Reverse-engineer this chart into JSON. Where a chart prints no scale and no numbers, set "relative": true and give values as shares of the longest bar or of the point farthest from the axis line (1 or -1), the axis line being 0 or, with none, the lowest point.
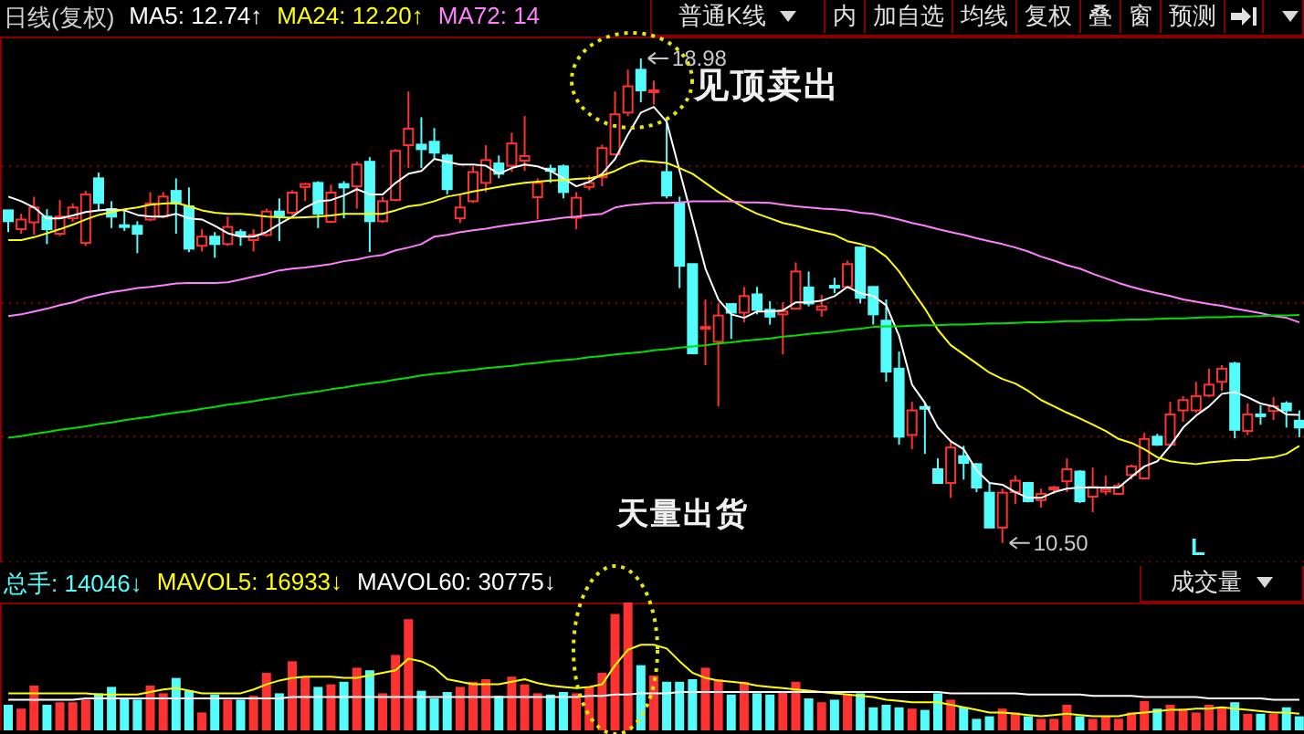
{
  "chart_data": [
    {
      "type": "candlestick",
      "title": "日线(复权)",
      "legend": "top left",
      "tick_labels": false,
      "grid": "y",
      "yticks": [
        {
          "value": 17.09,
          "label": null
        },
        {
          "value": 14.7,
          "label": null
        },
        {
          "value": 12.36,
          "label": null
        }
      ],
      "categories": [
        null,
        null,
        null,
        null,
        null,
        null,
        null,
        null,
        null,
        null,
        null,
        null,
        null,
        null,
        null,
        null,
        null,
        null,
        null,
        null,
        null,
        null,
        null,
        null,
        null,
        null,
        null,
        null,
        null,
        null,
        null,
        null,
        null,
        null,
        null,
        null,
        null,
        null,
        null,
        null,
        null,
        null,
        null,
        null,
        null,
        null,
        null,
        null,
        null,
        null,
        null,
        null,
        null,
        null,
        null,
        null,
        null,
        null,
        null,
        null,
        null,
        null,
        null,
        null,
        null,
        null,
        null,
        null,
        null,
        null,
        null,
        null,
        null,
        null,
        null,
        null,
        null,
        null,
        null,
        null,
        null,
        null,
        null,
        null,
        null,
        null,
        null,
        null,
        null,
        null,
        null,
        null,
        null,
        null,
        null,
        null,
        null,
        null,
        null,
        null,
        null
      ],
      "ohlc": [
        [
          16.32,
          16.32,
          15.94,
          16.13
        ],
        [
          15.99,
          16.26,
          15.91,
          16.16
        ],
        [
          16.11,
          16.56,
          15.89,
          16.37
        ],
        [
          16.21,
          16.34,
          15.73,
          15.99
        ],
        [
          15.91,
          16.5,
          15.87,
          16.21
        ],
        [
          16.18,
          16.44,
          16.12,
          16.37
        ],
        [
          15.75,
          16.66,
          15.7,
          16.6
        ],
        [
          16.88,
          16.98,
          16.32,
          16.45
        ],
        [
          16.34,
          16.48,
          16.01,
          16.21
        ],
        [
          16.06,
          16.34,
          15.96,
          16.03
        ],
        [
          16.05,
          16.13,
          15.57,
          15.91
        ],
        [
          16.16,
          16.64,
          16.13,
          16.44
        ],
        [
          16.21,
          16.64,
          16.18,
          16.56
        ],
        [
          16.66,
          16.88,
          15.91,
          16.44
        ],
        [
          16.39,
          16.72,
          15.59,
          15.65
        ],
        [
          15.7,
          15.99,
          15.6,
          15.86
        ],
        [
          15.86,
          15.94,
          15.49,
          15.73
        ],
        [
          15.73,
          16.21,
          15.7,
          16.03
        ],
        [
          15.94,
          15.99,
          15.7,
          15.88
        ],
        [
          15.8,
          15.99,
          15.6,
          15.89
        ],
        [
          15.89,
          16.35,
          15.86,
          16.3
        ],
        [
          16.3,
          16.53,
          15.78,
          16.23
        ],
        [
          16.28,
          16.67,
          16.24,
          16.63
        ],
        [
          16.73,
          16.8,
          16.48,
          16.78
        ],
        [
          16.8,
          16.83,
          16.01,
          16.26
        ],
        [
          16.12,
          16.77,
          16.1,
          16.63
        ],
        [
          16.78,
          16.83,
          16.18,
          16.72
        ],
        [
          16.74,
          17.17,
          16.35,
          17.12
        ],
        [
          17.17,
          17.25,
          15.59,
          16.13
        ],
        [
          16.13,
          16.56,
          16.1,
          16.48
        ],
        [
          16.5,
          17.39,
          16.48,
          17.36
        ],
        [
          17.46,
          18.4,
          17.06,
          17.75
        ],
        [
          17.47,
          17.95,
          17.06,
          17.39
        ],
        [
          17.52,
          17.76,
          17.23,
          17.33
        ],
        [
          17.28,
          17.31,
          16.6,
          16.69
        ],
        [
          16.18,
          16.6,
          16.1,
          16.37
        ],
        [
          16.48,
          17.09,
          16.45,
          16.99
        ],
        [
          16.8,
          17.46,
          16.64,
          17.2
        ],
        [
          17.14,
          17.28,
          16.88,
          16.96
        ],
        [
          17.1,
          17.68,
          16.99,
          17.49
        ],
        [
          17.19,
          17.97,
          17.01,
          17.27
        ],
        [
          16.55,
          16.88,
          16.16,
          16.8
        ],
        [
          17.05,
          17.12,
          16.8,
          17.01
        ],
        [
          17.09,
          17.12,
          16.53,
          16.64
        ],
        [
          16.19,
          16.64,
          15.99,
          16.54
        ],
        [
          16.73,
          16.93,
          16.67,
          16.8
        ],
        [
          16.9,
          17.47,
          16.74,
          17.41
        ],
        [
          17.3,
          18.4,
          17.28,
          18.0
        ],
        [
          18.03,
          18.78,
          17.97,
          18.49
        ],
        [
          18.78,
          18.98,
          18.21,
          18.42
        ],
        [
          18.4,
          18.59,
          18.17,
          18.42
        ],
        [
          16.99,
          17.87,
          16.53,
          16.58
        ],
        [
          16.45,
          16.56,
          14.96,
          15.35
        ],
        [
          15.38,
          15.38,
          13.8,
          13.82
        ],
        [
          14.25,
          14.76,
          13.61,
          14.28
        ],
        [
          14.02,
          14.69,
          12.89,
          14.48
        ],
        [
          14.68,
          14.68,
          14.07,
          14.53
        ],
        [
          14.53,
          14.98,
          14.36,
          14.82
        ],
        [
          14.85,
          14.98,
          14.5,
          14.58
        ],
        [
          14.58,
          14.73,
          14.32,
          14.46
        ],
        [
          14.5,
          14.71,
          13.8,
          14.55
        ],
        [
          14.6,
          15.41,
          14.58,
          15.25
        ],
        [
          14.97,
          15.25,
          14.64,
          14.69
        ],
        [
          14.58,
          14.84,
          14.46,
          14.64
        ],
        [
          15.0,
          15.14,
          14.87,
          14.98
        ],
        [
          14.98,
          15.44,
          14.96,
          15.38
        ],
        [
          15.67,
          15.67,
          14.69,
          14.79
        ],
        [
          14.98,
          14.98,
          14.32,
          14.5
        ],
        [
          14.39,
          14.76,
          13.32,
          13.5
        ],
        [
          13.55,
          13.85,
          12.22,
          12.36
        ],
        [
          12.39,
          12.97,
          12.14,
          12.82
        ],
        [
          12.88,
          12.94,
          12.06,
          12.86
        ],
        [
          11.79,
          11.98,
          11.55,
          11.55
        ],
        [
          11.55,
          12.3,
          11.29,
          12.17
        ],
        [
          12.02,
          12.2,
          11.61,
          11.9
        ],
        [
          11.88,
          11.9,
          11.39,
          11.47
        ],
        [
          11.38,
          11.55,
          10.77,
          10.77
        ],
        [
          10.77,
          11.45,
          10.5,
          11.38
        ],
        [
          11.39,
          11.68,
          11.18,
          11.59
        ],
        [
          11.55,
          11.57,
          11.21,
          11.23
        ],
        [
          11.25,
          11.45,
          11.12,
          11.36
        ],
        [
          11.44,
          11.5,
          11.36,
          11.47
        ],
        [
          11.58,
          11.98,
          11.39,
          11.79
        ],
        [
          11.75,
          11.77,
          11.2,
          11.23
        ],
        [
          11.31,
          11.82,
          11.04,
          11.48
        ],
        [
          11.4,
          11.68,
          11.34,
          11.44
        ],
        [
          11.36,
          11.55,
          11.34,
          11.5
        ],
        [
          11.69,
          11.87,
          11.61,
          11.84
        ],
        [
          11.63,
          12.43,
          11.61,
          12.32
        ],
        [
          12.36,
          12.41,
          12.2,
          12.22
        ],
        [
          12.22,
          12.97,
          12.2,
          12.75
        ],
        [
          12.82,
          13.07,
          12.62,
          13.0
        ],
        [
          12.82,
          13.32,
          12.78,
          13.07
        ],
        [
          13.08,
          13.55,
          13.05,
          13.27
        ],
        [
          13.32,
          13.61,
          13.16,
          13.55
        ],
        [
          13.64,
          13.67,
          12.33,
          12.48
        ],
        [
          12.46,
          12.94,
          12.39,
          12.75
        ],
        [
          12.75,
          12.91,
          12.57,
          12.73
        ],
        [
          12.81,
          13.05,
          12.65,
          12.89
        ],
        [
          12.94,
          12.98,
          12.52,
          12.82
        ],
        [
          12.64,
          12.82,
          12.35,
          12.52
        ]
      ],
      "colors": [
        "#54fcfc",
        "#ff3232",
        "#ff3232",
        "#54fcfc",
        "#ff3232",
        "#ff3232",
        "#ff3232",
        "#54fcfc",
        "#54fcfc",
        "#54fcfc",
        "#54fcfc",
        "#ff3232",
        "#ff3232",
        "#54fcfc",
        "#54fcfc",
        "#ff3232",
        "#54fcfc",
        "#ff3232",
        "#54fcfc",
        "#ff3232",
        "#ff3232",
        "#54fcfc",
        "#ff3232",
        "#ff3232",
        "#54fcfc",
        "#ff3232",
        "#54fcfc",
        "#ff3232",
        "#54fcfc",
        "#ff3232",
        "#ff3232",
        "#ff3232",
        "#54fcfc",
        "#54fcfc",
        "#54fcfc",
        "#ff3232",
        "#ff3232",
        "#ff3232",
        "#54fcfc",
        "#ff3232",
        "#ff3232",
        "#ff3232",
        "#54fcfc",
        "#54fcfc",
        "#ff3232",
        "#ff3232",
        "#ff3232",
        "#ff3232",
        "#ff3232",
        "#54fcfc",
        "#ff3232",
        "#54fcfc",
        "#54fcfc",
        "#54fcfc",
        "#ff3232",
        "#ff3232",
        "#54fcfc",
        "#ff3232",
        "#54fcfc",
        "#54fcfc",
        "#ff3232",
        "#ff3232",
        "#54fcfc",
        "#ff3232",
        "#54fcfc",
        "#ff3232",
        "#54fcfc",
        "#54fcfc",
        "#54fcfc",
        "#54fcfc",
        "#ff3232",
        "#54fcfc",
        "#54fcfc",
        "#ff3232",
        "#54fcfc",
        "#54fcfc",
        "#54fcfc",
        "#ff3232",
        "#ff3232",
        "#54fcfc",
        "#ff3232",
        "#ff3232",
        "#ff3232",
        "#54fcfc",
        "#ff3232",
        "#ff3232",
        "#ff3232",
        "#ff3232",
        "#ff3232",
        "#54fcfc",
        "#ff3232",
        "#ff3232",
        "#ff3232",
        "#ff3232",
        "#ff3232",
        "#54fcfc",
        "#ff3232",
        "#54fcfc",
        "#ff3232",
        "#54fcfc",
        "#54fcfc"
      ],
      "series": [
        {
          "type": "line",
          "name": "MA5: 12.74↑",
          "color": "#ffffff",
          "values": [
            16.56,
            16.48,
            16.37,
            16.18,
            16.18,
            16.23,
            16.29,
            16.32,
            16.34,
            16.32,
            16.24,
            16.21,
            16.21,
            16.26,
            16.18,
            16.16,
            16.05,
            15.92,
            15.86,
            15.86,
            15.94,
            16.08,
            16.21,
            16.37,
            16.48,
            16.5,
            16.58,
            16.69,
            16.6,
            16.6,
            16.8,
            16.96,
            17.01,
            17.22,
            17.17,
            17.12,
            17.12,
            17.1,
            16.96,
            17.06,
            17.12,
            17.09,
            17.01,
            16.88,
            16.74,
            16.82,
            16.96,
            17.22,
            17.65,
            18.03,
            18.13,
            17.87,
            17.01,
            16.16,
            15.3,
            14.76,
            14.5,
            14.44,
            14.55,
            14.55,
            14.57,
            14.71,
            14.71,
            14.74,
            14.82,
            14.98,
            14.87,
            14.82,
            14.66,
            14.12,
            13.27,
            12.95,
            12.52,
            12.28,
            12.14,
            11.77,
            11.55,
            11.52,
            11.39,
            11.29,
            11.29,
            11.39,
            11.45,
            11.47,
            11.47,
            11.47,
            11.47,
            11.66,
            11.84,
            11.93,
            12.2,
            12.52,
            12.73,
            12.89,
            13.11,
            13.14,
            13.05,
            12.94,
            12.89,
            12.75,
            12.74
          ]
        },
        {
          "type": "line",
          "name": "MA24: 12.20↑",
          "color": "#ffff00",
          "values": [
            15.8,
            15.8,
            15.85,
            15.92,
            15.99,
            16.07,
            16.16,
            16.24,
            16.29,
            16.34,
            16.37,
            16.42,
            16.44,
            16.45,
            16.39,
            16.32,
            16.28,
            16.26,
            16.26,
            16.24,
            16.21,
            16.2,
            16.19,
            16.2,
            16.21,
            16.23,
            16.26,
            16.26,
            16.26,
            16.26,
            16.32,
            16.39,
            16.42,
            16.48,
            16.56,
            16.6,
            16.65,
            16.69,
            16.73,
            16.77,
            16.8,
            16.82,
            16.84,
            16.85,
            16.87,
            16.88,
            16.93,
            17.01,
            17.12,
            17.19,
            17.17,
            17.15,
            17.06,
            16.96,
            16.8,
            16.64,
            16.5,
            16.37,
            16.26,
            16.18,
            16.1,
            16.05,
            15.99,
            15.94,
            15.89,
            15.78,
            15.73,
            15.67,
            15.51,
            15.25,
            14.92,
            14.6,
            14.23,
            13.96,
            13.8,
            13.64,
            13.48,
            13.37,
            13.29,
            13.16,
            13.0,
            12.89,
            12.78,
            12.68,
            12.57,
            12.46,
            12.32,
            12.25,
            12.14,
            12.0,
            11.93,
            11.9,
            11.88,
            11.91,
            11.93,
            11.95,
            11.95,
            11.98,
            12.0,
            12.06,
            12.2
          ]
        },
        {
          "type": "line",
          "name": "MA72: 14",
          "color": "#ff80ff",
          "values": [
            14.47,
            14.5,
            14.55,
            14.6,
            14.66,
            14.71,
            14.79,
            14.84,
            14.89,
            14.92,
            14.96,
            14.98,
            15.01,
            15.04,
            15.05,
            15.05,
            15.05,
            15.06,
            15.11,
            15.16,
            15.21,
            15.27,
            15.3,
            15.32,
            15.35,
            15.38,
            15.43,
            15.46,
            15.51,
            15.54,
            15.62,
            15.67,
            15.73,
            15.86,
            15.89,
            15.94,
            15.97,
            16.0,
            16.04,
            16.07,
            16.1,
            16.13,
            16.16,
            16.19,
            16.21,
            16.24,
            16.26,
            16.37,
            16.41,
            16.43,
            16.45,
            16.45,
            16.46,
            16.48,
            16.48,
            16.48,
            16.48,
            16.46,
            16.46,
            16.45,
            16.42,
            16.39,
            16.37,
            16.35,
            16.34,
            16.32,
            16.28,
            16.26,
            16.21,
            16.16,
            16.1,
            16.05,
            15.99,
            15.94,
            15.89,
            15.83,
            15.78,
            15.73,
            15.67,
            15.6,
            15.51,
            15.44,
            15.36,
            15.3,
            15.21,
            15.13,
            15.05,
            14.98,
            14.92,
            14.87,
            14.82,
            14.76,
            14.72,
            14.68,
            14.65,
            14.6,
            14.56,
            14.52,
            14.47,
            14.44,
            14.36
          ]
        },
        {
          "type": "line",
          "color": "#00e000",
          "values": [
            12.34,
            12.37,
            12.41,
            12.44,
            12.48,
            12.51,
            12.54,
            12.58,
            12.61,
            12.65,
            12.68,
            12.71,
            12.75,
            12.78,
            12.81,
            12.85,
            12.88,
            12.92,
            12.95,
            12.98,
            13.02,
            13.05,
            13.09,
            13.12,
            13.15,
            13.19,
            13.22,
            13.26,
            13.29,
            13.32,
            13.36,
            13.39,
            13.43,
            13.46,
            13.48,
            13.51,
            13.53,
            13.56,
            13.58,
            13.6,
            13.63,
            13.65,
            13.68,
            13.7,
            13.72,
            13.75,
            13.77,
            13.8,
            13.82,
            13.84,
            13.87,
            13.89,
            13.92,
            13.94,
            13.96,
            13.99,
            14.01,
            14.04,
            14.06,
            14.08,
            14.11,
            14.13,
            14.16,
            14.18,
            14.2,
            14.23,
            14.25,
            14.28,
            14.29,
            14.29,
            14.3,
            14.31,
            14.31,
            14.32,
            14.32,
            14.33,
            14.34,
            14.34,
            14.35,
            14.36,
            14.36,
            14.37,
            14.38,
            14.38,
            14.39,
            14.39,
            14.4,
            14.41,
            14.41,
            14.42,
            14.43,
            14.43,
            14.44,
            14.45,
            14.45,
            14.46,
            14.46,
            14.47,
            14.48,
            14.48,
            14.49
          ]
        }
      ],
      "annotations": [
        "18.98",
        "10.50",
        "见顶卖出",
        "天量出货",
        "L",
        "普通K线",
        "内",
        "加自选",
        "均线",
        "复权",
        "叠",
        "窗",
        "预测"
      ]
    },
    {
      "type": "bar",
      "relative": true,
      "legend": "top left",
      "tick_labels": false,
      "categories": [
        null,
        null,
        null,
        null,
        null,
        null,
        null,
        null,
        null,
        null,
        null,
        null,
        null,
        null,
        null,
        null,
        null,
        null,
        null,
        null,
        null,
        null,
        null,
        null,
        null,
        null,
        null,
        null,
        null,
        null,
        null,
        null,
        null,
        null,
        null,
        null,
        null,
        null,
        null,
        null,
        null,
        null,
        null,
        null,
        null,
        null,
        null,
        null,
        null,
        null,
        null,
        null,
        null,
        null,
        null,
        null,
        null,
        null,
        null,
        null,
        null,
        null,
        null,
        null,
        null,
        null,
        null,
        null,
        null,
        null,
        null,
        null,
        null,
        null,
        null,
        null,
        null,
        null,
        null,
        null,
        null,
        null,
        null,
        null,
        null,
        null,
        null,
        null,
        null,
        null,
        null,
        null,
        null,
        null,
        null,
        null,
        null,
        null,
        null,
        null,
        null
      ],
      "series": [
        {
          "name": "总手: 14046↓",
          "color": "#54fcfc",
          "colors": [
            "#54fcfc",
            "#ff3232",
            "#ff3232",
            "#54fcfc",
            "#ff3232",
            "#ff3232",
            "#ff3232",
            "#54fcfc",
            "#54fcfc",
            "#54fcfc",
            "#54fcfc",
            "#ff3232",
            "#ff3232",
            "#54fcfc",
            "#54fcfc",
            "#ff3232",
            "#54fcfc",
            "#ff3232",
            "#54fcfc",
            "#ff3232",
            "#ff3232",
            "#54fcfc",
            "#ff3232",
            "#ff3232",
            "#54fcfc",
            "#ff3232",
            "#54fcfc",
            "#ff3232",
            "#54fcfc",
            "#ff3232",
            "#ff3232",
            "#ff3232",
            "#54fcfc",
            "#54fcfc",
            "#54fcfc",
            "#ff3232",
            "#ff3232",
            "#ff3232",
            "#54fcfc",
            "#ff3232",
            "#ff3232",
            "#ff3232",
            "#54fcfc",
            "#54fcfc",
            "#ff3232",
            "#ff3232",
            "#ff3232",
            "#ff3232",
            "#ff3232",
            "#54fcfc",
            "#ff3232",
            "#54fcfc",
            "#54fcfc",
            "#54fcfc",
            "#ff3232",
            "#ff3232",
            "#54fcfc",
            "#ff3232",
            "#54fcfc",
            "#54fcfc",
            "#ff3232",
            "#ff3232",
            "#54fcfc",
            "#ff3232",
            "#54fcfc",
            "#ff3232",
            "#54fcfc",
            "#54fcfc",
            "#54fcfc",
            "#54fcfc",
            "#ff3232",
            "#54fcfc",
            "#54fcfc",
            "#ff3232",
            "#54fcfc",
            "#54fcfc",
            "#54fcfc",
            "#ff3232",
            "#ff3232",
            "#54fcfc",
            "#ff3232",
            "#ff3232",
            "#ff3232",
            "#54fcfc",
            "#ff3232",
            "#ff3232",
            "#ff3232",
            "#ff3232",
            "#ff3232",
            "#54fcfc",
            "#ff3232",
            "#ff3232",
            "#ff3232",
            "#ff3232",
            "#ff3232",
            "#54fcfc",
            "#ff3232",
            "#54fcfc",
            "#ff3232",
            "#54fcfc",
            "#54fcfc"
          ],
          "values": [
            0.2,
            0.17,
            0.35,
            0.2,
            0.22,
            0.22,
            0.24,
            0.29,
            0.34,
            0.25,
            0.24,
            0.35,
            0.29,
            0.41,
            0.31,
            0.14,
            0.28,
            0.24,
            0.24,
            0.27,
            0.45,
            0.29,
            0.54,
            0.42,
            0.34,
            0.36,
            0.38,
            0.49,
            0.47,
            0.29,
            0.59,
            0.87,
            0.31,
            0.25,
            0.3,
            0.34,
            0.38,
            0.4,
            0.27,
            0.42,
            0.36,
            0.29,
            0.28,
            0.3,
            0.29,
            0.34,
            0.45,
            0.91,
            1,
            0.51,
            0.43,
            0.38,
            0.38,
            0.4,
            0.49,
            0.4,
            0.28,
            0.38,
            0.29,
            0.28,
            0.3,
            0.38,
            0.25,
            0.22,
            0.24,
            0.28,
            0.29,
            0.18,
            0.2,
            0.18,
            0.17,
            0.16,
            0.29,
            0.24,
            0.18,
            0.09,
            0.11,
            0.17,
            0.14,
            0.11,
            0.09,
            0.09,
            0.2,
            0.11,
            0.09,
            0.11,
            0.09,
            0.14,
            0.23,
            0.17,
            0.2,
            0.17,
            0.14,
            0.2,
            0.18,
            0.22,
            0.13,
            0.13,
            0.13,
            0.18,
            0.11
          ]
        },
        {
          "type": "line",
          "name": "MAVOL5: 16933↓",
          "color": "#ffff00",
          "values": [
            0.29,
            0.29,
            0.29,
            0.29,
            0.29,
            0.29,
            0.29,
            0.28,
            0.28,
            0.28,
            0.28,
            0.3,
            0.32,
            0.33,
            0.31,
            0.29,
            0.29,
            0.29,
            0.29,
            0.32,
            0.36,
            0.39,
            0.41,
            0.42,
            0.42,
            0.42,
            0.41,
            0.41,
            0.43,
            0.45,
            0.47,
            0.56,
            0.54,
            0.49,
            0.4,
            0.38,
            0.36,
            0.36,
            0.36,
            0.38,
            0.4,
            0.37,
            0.35,
            0.34,
            0.33,
            0.34,
            0.36,
            0.51,
            0.63,
            0.67,
            0.67,
            0.64,
            0.54,
            0.45,
            0.41,
            0.39,
            0.38,
            0.37,
            0.35,
            0.34,
            0.33,
            0.32,
            0.31,
            0.3,
            0.29,
            0.28,
            0.27,
            0.26,
            0.24,
            0.23,
            0.22,
            0.22,
            0.22,
            0.2,
            0.18,
            0.16,
            0.14,
            0.14,
            0.13,
            0.12,
            0.11,
            0.12,
            0.13,
            0.12,
            0.11,
            0.11,
            0.11,
            0.13,
            0.14,
            0.15,
            0.16,
            0.16,
            0.17,
            0.17,
            0.18,
            0.17,
            0.16,
            0.15,
            0.14,
            0.14,
            0.13
          ]
        },
        {
          "type": "line",
          "name": "MAVOL60: 30775↓",
          "color": "#ffffff",
          "values": [
            0.24,
            0.24,
            0.24,
            0.24,
            0.24,
            0.24,
            0.25,
            0.25,
            0.25,
            0.25,
            0.25,
            0.25,
            0.25,
            0.25,
            0.25,
            0.25,
            0.25,
            0.25,
            0.25,
            0.25,
            0.25,
            0.25,
            0.26,
            0.26,
            0.26,
            0.26,
            0.26,
            0.26,
            0.26,
            0.26,
            0.26,
            0.26,
            0.26,
            0.26,
            0.26,
            0.26,
            0.26,
            0.26,
            0.26,
            0.26,
            0.26,
            0.26,
            0.26,
            0.26,
            0.26,
            0.27,
            0.27,
            0.28,
            0.28,
            0.29,
            0.29,
            0.29,
            0.3,
            0.3,
            0.3,
            0.3,
            0.3,
            0.3,
            0.3,
            0.3,
            0.3,
            0.3,
            0.3,
            0.3,
            0.3,
            0.3,
            0.3,
            0.3,
            0.3,
            0.3,
            0.3,
            0.3,
            0.3,
            0.29,
            0.29,
            0.29,
            0.29,
            0.29,
            0.29,
            0.28,
            0.28,
            0.28,
            0.28,
            0.28,
            0.27,
            0.27,
            0.27,
            0.27,
            0.26,
            0.26,
            0.26,
            0.26,
            0.26,
            0.25,
            0.25,
            0.25,
            0.25,
            0.25,
            0.24,
            0.24,
            0.24
          ]
        }
      ],
      "annotations": [
        "成交量"
      ]
    }
  ]
}
